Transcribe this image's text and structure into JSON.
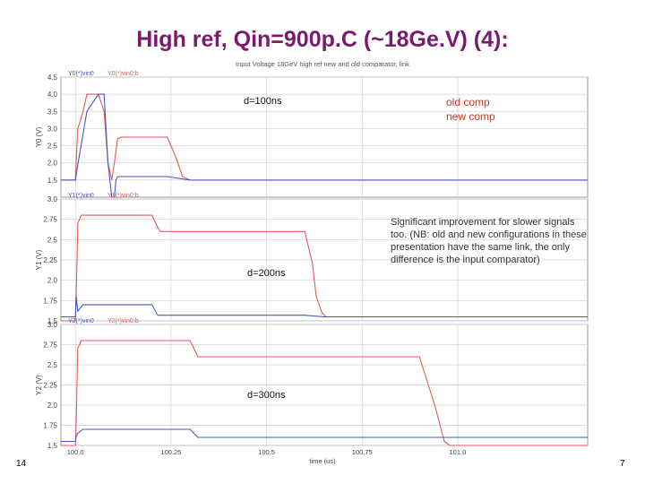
{
  "slide": {
    "title": "High ref, Qin=900p.C (~18Ge.V) (4):",
    "page_left": "14",
    "page_right": "7",
    "legend_old": "old comp",
    "legend_new": "new comp",
    "note": "Significant improvement for slower signals too. (NB: old and new configurations in these presentation have the same link, the only difference is the input comparator)"
  },
  "colors": {
    "old": "#e05a5a",
    "new": "#4455c4",
    "grid": "#d0d0d0"
  },
  "chart_data": [
    {
      "type": "line",
      "title": "Input Voltage 18GeV high ref new and old comparator, link",
      "annotation": "d=100ns",
      "ylabel": "Y0 (V)",
      "xlim": [
        99.962,
        101.34
      ],
      "ylim": [
        1.0,
        4.5
      ],
      "yticks": [
        1.5,
        2.0,
        2.5,
        3.0,
        3.5,
        4.0,
        4.5
      ],
      "ytick_labels": [
        "1.5",
        "2.0",
        "2.5",
        "3.0",
        "3.5",
        "4.0",
        "4.5"
      ],
      "header_labels": [
        "Y0(*)vin0",
        "Y0(*)vin0:b"
      ],
      "series": [
        {
          "name": "old comp",
          "x": [
            99.962,
            100.0,
            100.004,
            100.006,
            100.012,
            100.02,
            100.03,
            100.06,
            100.075,
            100.085,
            100.095,
            100.102,
            100.11,
            100.12,
            100.24,
            100.25,
            100.265,
            100.28,
            100.3
          ],
          "y": [
            1.5,
            1.5,
            2.5,
            3.0,
            3.2,
            3.5,
            4.0,
            4.0,
            3.5,
            2.0,
            1.5,
            2.0,
            2.7,
            2.75,
            2.75,
            2.5,
            2.1,
            1.6,
            1.5
          ]
        },
        {
          "name": "new comp",
          "x": [
            99.962,
            100.0,
            100.004,
            100.01,
            100.03,
            100.06,
            100.075,
            100.085,
            100.095,
            100.102,
            100.106,
            100.11,
            100.24,
            100.3,
            101.34
          ],
          "y": [
            1.5,
            1.5,
            1.8,
            2.2,
            3.5,
            4.0,
            4.0,
            2.0,
            1.0,
            1.0,
            1.5,
            1.6,
            1.6,
            1.5,
            1.5
          ]
        }
      ]
    },
    {
      "type": "line",
      "title": "",
      "annotation": "d=200ns",
      "ylabel": "Y1 (V)",
      "xlim": [
        99.962,
        101.34
      ],
      "ylim": [
        1.5,
        3.0
      ],
      "yticks": [
        1.5,
        1.75,
        2.0,
        2.25,
        2.5,
        2.75,
        3.0
      ],
      "ytick_labels": [
        "1.5",
        "1.75",
        "2.0",
        "2.25",
        "2.5",
        "2.75",
        "3.0"
      ],
      "header_labels": [
        "Y1(*)vin0",
        "Y1(*)vin0:b"
      ],
      "series": [
        {
          "name": "old comp",
          "x": [
            99.962,
            100.0,
            100.003,
            100.006,
            100.015,
            100.2,
            100.215,
            100.222,
            100.6,
            100.62,
            100.63,
            100.645,
            100.655,
            100.7
          ],
          "y": [
            1.5,
            1.5,
            2.0,
            2.7,
            2.8,
            2.8,
            2.65,
            2.6,
            2.6,
            2.2,
            1.8,
            1.6,
            1.55,
            1.55
          ]
        },
        {
          "name": "new comp",
          "x": [
            99.962,
            100.0,
            100.002,
            100.006,
            100.02,
            100.2,
            100.215,
            100.6,
            100.65,
            101.34
          ],
          "y": [
            1.55,
            1.55,
            1.8,
            1.62,
            1.7,
            1.7,
            1.57,
            1.57,
            1.55,
            1.55
          ]
        }
      ]
    },
    {
      "type": "line",
      "title": "",
      "annotation": "d=300ns",
      "xlabel": "time (us)",
      "ylabel": "Y2 (V)",
      "xlim": [
        99.962,
        101.34
      ],
      "ylim": [
        1.5,
        3.0
      ],
      "yticks": [
        1.5,
        1.75,
        2.0,
        2.25,
        2.5,
        2.75,
        3.0
      ],
      "ytick_labels": [
        "1.5",
        "1.75",
        "2.0",
        "2.25",
        "2.5",
        "2.75",
        "3.0"
      ],
      "xticks": [
        100.0,
        100.25,
        100.5,
        100.75,
        101.0
      ],
      "xtick_labels": [
        "100.0",
        "100.25",
        "100.5",
        "100.75",
        "101.0"
      ],
      "header_labels": [
        "Y2(*)vin0",
        "Y2(*)vin0:b"
      ],
      "series": [
        {
          "name": "old comp",
          "x": [
            99.962,
            100.0,
            100.003,
            100.006,
            100.015,
            100.3,
            100.32,
            100.9,
            100.94,
            100.965,
            100.98,
            101.34
          ],
          "y": [
            1.5,
            1.5,
            2.0,
            2.7,
            2.8,
            2.8,
            2.6,
            2.6,
            2.0,
            1.55,
            1.5,
            1.5
          ]
        },
        {
          "name": "new comp",
          "x": [
            99.962,
            100.0,
            100.002,
            100.006,
            100.02,
            100.3,
            100.32,
            101.34
          ],
          "y": [
            1.55,
            1.55,
            1.62,
            1.65,
            1.7,
            1.7,
            1.6,
            1.6
          ]
        }
      ]
    }
  ]
}
